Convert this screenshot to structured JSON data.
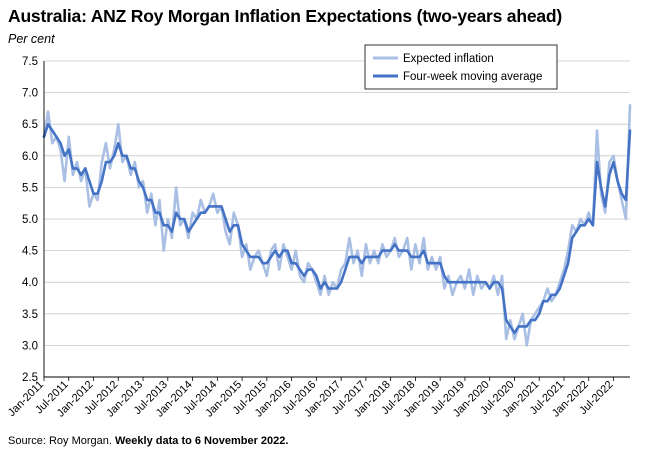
{
  "chart_data": {
    "type": "line",
    "title": "Australia: ANZ Roy Morgan Inflation Expectations (two-years ahead)",
    "ylabel": "Per cent",
    "ylim": [
      2.5,
      7.5
    ],
    "yticks": [
      "7.5",
      "7.0",
      "6.5",
      "6.0",
      "5.5",
      "5.0",
      "4.5",
      "4.0",
      "3.5",
      "3.0",
      "2.5"
    ],
    "xrange": [
      "2011-01",
      "2022-11"
    ],
    "xticks": [
      "Jan-2011",
      "Jul-2011",
      "Jan-2012",
      "Jul-2012",
      "Jan-2013",
      "Jul-2013",
      "Jan-2014",
      "Jul-2014",
      "Jan-2015",
      "Jul-2015",
      "Jan-2016",
      "Jul-2016",
      "Jan-2017",
      "Jul-2017",
      "Jan-2018",
      "Jul-2018",
      "Jan-2019",
      "Jul-2019",
      "Jan-2020",
      "Jul-2020",
      "Jan-2021",
      "Jul-2021",
      "Jan-2022",
      "Jul-2022"
    ],
    "grid": true,
    "legend_position": "top-right",
    "series": [
      {
        "name": "Expected inflation",
        "color": "#a9bfe3",
        "x": [
          "2011-01",
          "2011-02",
          "2011-03",
          "2011-04",
          "2011-05",
          "2011-06",
          "2011-07",
          "2011-08",
          "2011-09",
          "2011-10",
          "2011-11",
          "2011-12",
          "2012-01",
          "2012-02",
          "2012-03",
          "2012-04",
          "2012-05",
          "2012-06",
          "2012-07",
          "2012-08",
          "2012-09",
          "2012-10",
          "2012-11",
          "2012-12",
          "2013-01",
          "2013-02",
          "2013-03",
          "2013-04",
          "2013-05",
          "2013-06",
          "2013-07",
          "2013-08",
          "2013-09",
          "2013-10",
          "2013-11",
          "2013-12",
          "2014-01",
          "2014-02",
          "2014-03",
          "2014-04",
          "2014-05",
          "2014-06",
          "2014-07",
          "2014-08",
          "2014-09",
          "2014-10",
          "2014-11",
          "2014-12",
          "2015-01",
          "2015-02",
          "2015-03",
          "2015-04",
          "2015-05",
          "2015-06",
          "2015-07",
          "2015-08",
          "2015-09",
          "2015-10",
          "2015-11",
          "2015-12",
          "2016-01",
          "2016-02",
          "2016-03",
          "2016-04",
          "2016-05",
          "2016-06",
          "2016-07",
          "2016-08",
          "2016-09",
          "2016-10",
          "2016-11",
          "2016-12",
          "2017-01",
          "2017-02",
          "2017-03",
          "2017-04",
          "2017-05",
          "2017-06",
          "2017-07",
          "2017-08",
          "2017-09",
          "2017-10",
          "2017-11",
          "2017-12",
          "2018-01",
          "2018-02",
          "2018-03",
          "2018-04",
          "2018-05",
          "2018-06",
          "2018-07",
          "2018-08",
          "2018-09",
          "2018-10",
          "2018-11",
          "2018-12",
          "2019-01",
          "2019-02",
          "2019-03",
          "2019-04",
          "2019-05",
          "2019-06",
          "2019-07",
          "2019-08",
          "2019-09",
          "2019-10",
          "2019-11",
          "2019-12",
          "2020-01",
          "2020-02",
          "2020-03",
          "2020-04",
          "2020-05",
          "2020-06",
          "2020-07",
          "2020-08",
          "2020-09",
          "2020-10",
          "2020-11",
          "2020-12",
          "2021-01",
          "2021-02",
          "2021-03",
          "2021-04",
          "2021-05",
          "2021-06",
          "2021-07",
          "2021-08",
          "2021-09",
          "2021-10",
          "2021-11",
          "2021-12",
          "2022-01",
          "2022-02",
          "2022-03",
          "2022-04",
          "2022-05",
          "2022-06",
          "2022-07",
          "2022-08",
          "2022-09",
          "2022-10",
          "2022-11"
        ],
        "values": [
          6.3,
          6.7,
          6.2,
          6.3,
          6.1,
          5.6,
          6.3,
          5.7,
          5.9,
          5.6,
          5.8,
          5.2,
          5.4,
          5.3,
          5.9,
          6.2,
          5.8,
          6.1,
          6.5,
          5.9,
          6.0,
          5.7,
          5.9,
          5.5,
          5.6,
          5.1,
          5.4,
          4.9,
          5.3,
          4.5,
          5.0,
          4.7,
          5.5,
          4.9,
          5.0,
          4.7,
          5.1,
          5.0,
          5.3,
          5.1,
          5.2,
          5.4,
          5.1,
          5.2,
          4.8,
          4.6,
          5.1,
          4.9,
          4.4,
          4.6,
          4.2,
          4.4,
          4.5,
          4.3,
          4.1,
          4.5,
          4.6,
          4.2,
          4.6,
          4.4,
          4.2,
          4.5,
          4.1,
          4.0,
          4.3,
          4.2,
          4.0,
          3.8,
          4.1,
          3.8,
          4.0,
          3.9,
          4.2,
          4.3,
          4.7,
          4.3,
          4.5,
          4.1,
          4.6,
          4.3,
          4.5,
          4.3,
          4.6,
          4.4,
          4.5,
          4.7,
          4.4,
          4.5,
          4.7,
          4.2,
          4.6,
          4.3,
          4.7,
          4.2,
          4.4,
          4.2,
          4.4,
          3.9,
          4.1,
          3.8,
          4.0,
          4.1,
          3.9,
          4.2,
          3.8,
          4.1,
          3.9,
          4.0,
          3.9,
          4.1,
          3.8,
          4.1,
          3.1,
          3.4,
          3.1,
          3.3,
          3.5,
          3.0,
          3.4,
          3.5,
          3.6,
          3.7,
          3.9,
          3.7,
          3.8,
          4.0,
          4.2,
          4.5,
          4.9,
          4.8,
          5.0,
          4.9,
          5.1,
          4.9,
          6.4,
          5.4,
          5.1,
          5.9,
          6.0,
          5.6,
          5.3,
          5.0,
          6.8
        ]
      },
      {
        "name": "Four-week moving average",
        "color": "#4472c4",
        "x": [
          "2011-01",
          "2011-02",
          "2011-03",
          "2011-04",
          "2011-05",
          "2011-06",
          "2011-07",
          "2011-08",
          "2011-09",
          "2011-10",
          "2011-11",
          "2011-12",
          "2012-01",
          "2012-02",
          "2012-03",
          "2012-04",
          "2012-05",
          "2012-06",
          "2012-07",
          "2012-08",
          "2012-09",
          "2012-10",
          "2012-11",
          "2012-12",
          "2013-01",
          "2013-02",
          "2013-03",
          "2013-04",
          "2013-05",
          "2013-06",
          "2013-07",
          "2013-08",
          "2013-09",
          "2013-10",
          "2013-11",
          "2013-12",
          "2014-01",
          "2014-02",
          "2014-03",
          "2014-04",
          "2014-05",
          "2014-06",
          "2014-07",
          "2014-08",
          "2014-09",
          "2014-10",
          "2014-11",
          "2014-12",
          "2015-01",
          "2015-02",
          "2015-03",
          "2015-04",
          "2015-05",
          "2015-06",
          "2015-07",
          "2015-08",
          "2015-09",
          "2015-10",
          "2015-11",
          "2015-12",
          "2016-01",
          "2016-02",
          "2016-03",
          "2016-04",
          "2016-05",
          "2016-06",
          "2016-07",
          "2016-08",
          "2016-09",
          "2016-10",
          "2016-11",
          "2016-12",
          "2017-01",
          "2017-02",
          "2017-03",
          "2017-04",
          "2017-05",
          "2017-06",
          "2017-07",
          "2017-08",
          "2017-09",
          "2017-10",
          "2017-11",
          "2017-12",
          "2018-01",
          "2018-02",
          "2018-03",
          "2018-04",
          "2018-05",
          "2018-06",
          "2018-07",
          "2018-08",
          "2018-09",
          "2018-10",
          "2018-11",
          "2018-12",
          "2019-01",
          "2019-02",
          "2019-03",
          "2019-04",
          "2019-05",
          "2019-06",
          "2019-07",
          "2019-08",
          "2019-09",
          "2019-10",
          "2019-11",
          "2019-12",
          "2020-01",
          "2020-02",
          "2020-03",
          "2020-04",
          "2020-05",
          "2020-06",
          "2020-07",
          "2020-08",
          "2020-09",
          "2020-10",
          "2020-11",
          "2020-12",
          "2021-01",
          "2021-02",
          "2021-03",
          "2021-04",
          "2021-05",
          "2021-06",
          "2021-07",
          "2021-08",
          "2021-09",
          "2021-10",
          "2021-11",
          "2021-12",
          "2022-01",
          "2022-02",
          "2022-03",
          "2022-04",
          "2022-05",
          "2022-06",
          "2022-07",
          "2022-08",
          "2022-09",
          "2022-10",
          "2022-11"
        ],
        "values": [
          6.3,
          6.5,
          6.4,
          6.3,
          6.2,
          6.0,
          6.1,
          5.8,
          5.8,
          5.7,
          5.8,
          5.6,
          5.4,
          5.4,
          5.6,
          5.9,
          5.9,
          6.0,
          6.2,
          6.0,
          6.0,
          5.8,
          5.8,
          5.6,
          5.5,
          5.3,
          5.3,
          5.1,
          5.1,
          4.9,
          4.9,
          4.8,
          5.1,
          5.0,
          5.0,
          4.8,
          4.9,
          5.0,
          5.1,
          5.1,
          5.2,
          5.2,
          5.2,
          5.2,
          5.0,
          4.8,
          4.9,
          4.9,
          4.6,
          4.5,
          4.4,
          4.4,
          4.4,
          4.3,
          4.3,
          4.4,
          4.5,
          4.4,
          4.5,
          4.5,
          4.3,
          4.3,
          4.2,
          4.1,
          4.2,
          4.2,
          4.1,
          3.9,
          4.0,
          3.9,
          3.9,
          3.9,
          4.0,
          4.2,
          4.4,
          4.4,
          4.4,
          4.3,
          4.4,
          4.4,
          4.4,
          4.4,
          4.5,
          4.5,
          4.5,
          4.6,
          4.5,
          4.5,
          4.5,
          4.4,
          4.4,
          4.4,
          4.5,
          4.3,
          4.3,
          4.3,
          4.3,
          4.1,
          4.0,
          4.0,
          4.0,
          4.0,
          4.0,
          4.0,
          4.0,
          4.0,
          4.0,
          4.0,
          3.9,
          4.0,
          4.0,
          3.9,
          3.4,
          3.3,
          3.2,
          3.3,
          3.3,
          3.3,
          3.4,
          3.4,
          3.5,
          3.7,
          3.7,
          3.8,
          3.8,
          3.9,
          4.1,
          4.3,
          4.7,
          4.8,
          4.9,
          4.9,
          5.0,
          4.9,
          5.9,
          5.5,
          5.2,
          5.7,
          5.9,
          5.6,
          5.4,
          5.3,
          6.4
        ]
      }
    ],
    "source_prefix": "Source: Roy Morgan. ",
    "source_note": "Weekly data to 6 November 2022."
  }
}
